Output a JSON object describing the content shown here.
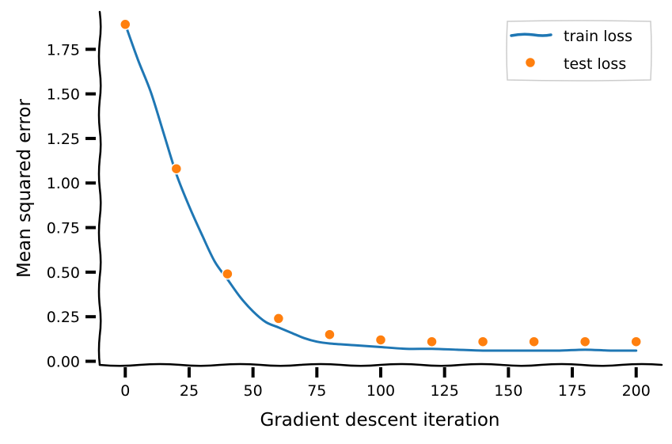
{
  "chart_data": {
    "type": "line",
    "title": "",
    "xlabel": "Gradient descent iteration",
    "ylabel": "Mean squared error",
    "xlim": [
      -10,
      210
    ],
    "ylim": [
      -0.02,
      1.96
    ],
    "xticks": [
      0,
      25,
      50,
      75,
      100,
      125,
      150,
      175,
      200
    ],
    "yticks": [
      0.0,
      0.25,
      0.5,
      0.75,
      1.0,
      1.25,
      1.5,
      1.75
    ],
    "ytick_labels": [
      "0.00",
      "0.25",
      "0.50",
      "0.75",
      "1.00",
      "1.25",
      "1.50",
      "1.75"
    ],
    "grid": false,
    "legend_position": "top-right",
    "series": [
      {
        "name": "train loss",
        "style": "line",
        "color": "#1f77b4",
        "x": [
          0,
          5,
          10,
          15,
          20,
          25,
          30,
          35,
          40,
          45,
          50,
          55,
          60,
          65,
          70,
          75,
          80,
          90,
          100,
          110,
          120,
          130,
          140,
          150,
          160,
          170,
          180,
          190,
          200
        ],
        "y": [
          1.89,
          1.69,
          1.51,
          1.28,
          1.05,
          0.87,
          0.71,
          0.56,
          0.46,
          0.36,
          0.28,
          0.22,
          0.19,
          0.16,
          0.13,
          0.11,
          0.1,
          0.09,
          0.08,
          0.07,
          0.07,
          0.065,
          0.06,
          0.06,
          0.06,
          0.06,
          0.065,
          0.06,
          0.06
        ]
      },
      {
        "name": "test loss",
        "style": "markers",
        "color": "#ff7f0e",
        "x": [
          0,
          20,
          40,
          60,
          80,
          100,
          120,
          140,
          160,
          180,
          200
        ],
        "y": [
          1.89,
          1.08,
          0.49,
          0.24,
          0.15,
          0.12,
          0.11,
          0.11,
          0.11,
          0.11,
          0.11
        ]
      }
    ]
  }
}
